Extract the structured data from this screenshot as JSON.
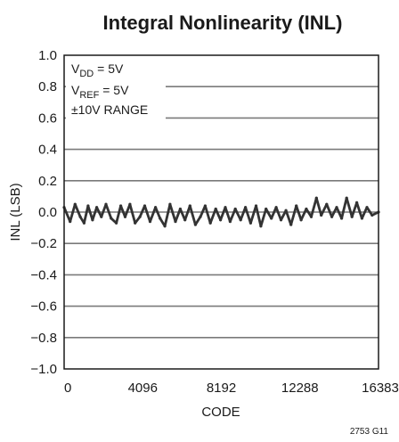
{
  "chart_data": {
    "type": "line",
    "title": "Integral Nonlinearity (INL)",
    "xlabel": "CODE",
    "ylabel": "INL (LSB)",
    "xlim": [
      0,
      16383
    ],
    "ylim": [
      -1.0,
      1.0
    ],
    "xticks": [
      0,
      4096,
      8192,
      12288,
      16383
    ],
    "xtick_labels": [
      "0",
      "4096",
      "8192",
      "12288",
      "16383"
    ],
    "yticks": [
      1.0,
      0.8,
      0.6,
      0.4,
      0.2,
      0.0,
      -0.2,
      -0.4,
      -0.6,
      -0.8,
      -1.0
    ],
    "ytick_labels": [
      "1.0",
      "0.8",
      "0.6",
      "0.4",
      "0.2",
      "0.0",
      "−0.2",
      "−0.4",
      "−0.6",
      "−0.8",
      "−1.0"
    ],
    "grid": true,
    "conditions": {
      "vdd": {
        "main": "V",
        "sub": "DD",
        "rest": " = 5V"
      },
      "vref": {
        "main": "V",
        "sub": "REF",
        "rest": " = 5V"
      },
      "range": "±10V RANGE"
    },
    "series": [
      {
        "color": "#333333",
        "x": [
          0,
          310,
          570,
          840,
          1040,
          1250,
          1480,
          1700,
          1940,
          2180,
          2450,
          2720,
          2950,
          3180,
          3430,
          3700,
          3950,
          4200,
          4480,
          4760,
          5000,
          5250,
          5520,
          5800,
          6050,
          6300,
          6560,
          6840,
          7100,
          7350,
          7620,
          7900,
          8150,
          8400,
          8650,
          8920,
          9200,
          9450,
          9720,
          10000,
          10250,
          10520,
          10800,
          11050,
          11300,
          11560,
          11820,
          12100,
          12350,
          12620,
          12880,
          13150,
          13400,
          13680,
          13950,
          14200,
          14460,
          14720,
          15000,
          15250,
          15520,
          15780,
          16050,
          16383
        ],
        "y": [
          0.03,
          -0.06,
          0.05,
          -0.03,
          -0.07,
          0.04,
          -0.05,
          0.03,
          -0.03,
          0.05,
          -0.04,
          -0.07,
          0.04,
          -0.03,
          0.05,
          -0.07,
          -0.03,
          0.04,
          -0.06,
          0.03,
          -0.04,
          -0.09,
          0.05,
          -0.06,
          0.02,
          -0.05,
          0.04,
          -0.08,
          -0.03,
          0.04,
          -0.07,
          0.02,
          -0.05,
          0.03,
          -0.06,
          0.02,
          -0.05,
          0.03,
          -0.07,
          0.04,
          -0.09,
          0.02,
          -0.04,
          0.03,
          -0.05,
          0.01,
          -0.08,
          0.04,
          -0.05,
          0.02,
          -0.03,
          0.09,
          -0.02,
          0.05,
          -0.03,
          0.03,
          -0.04,
          0.09,
          -0.03,
          0.06,
          -0.04,
          0.03,
          -0.02,
          0.0
        ]
      }
    ]
  },
  "figure_code": "2753 G11"
}
